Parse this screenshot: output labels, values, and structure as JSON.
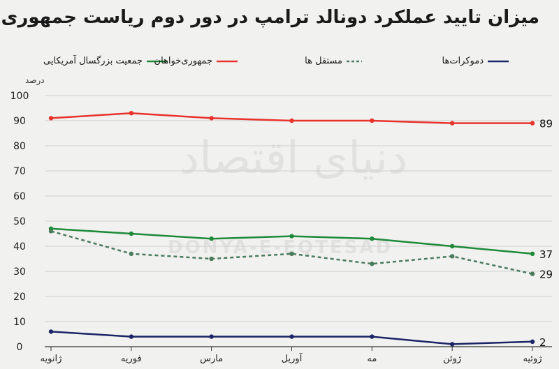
{
  "title": "میزان تایید عملکرد دونالد ترامپ در دور دوم ریاست جمهوری",
  "watermark": "دنیای اقتصاد",
  "watermark_en": "DONYA-E-EQTESAD",
  "chart_data": {
    "type": "line",
    "title": "میزان تایید عملکرد دونالد ترامپ در دور دوم ریاست جمهوری",
    "ylabel": "درصد",
    "xlabel": "",
    "ylim": [
      0,
      100
    ],
    "yticks": [
      0,
      10,
      20,
      30,
      40,
      50,
      60,
      70,
      80,
      90,
      100
    ],
    "categories": [
      "ژانویه",
      "فوریه",
      "مارس",
      "آوریل",
      "مه",
      "ژوئن",
      "ژوئیه"
    ],
    "grid": true,
    "legend_position": "top",
    "series": [
      {
        "name": "جمعیت بزرگسال آمریکایی",
        "color": "#1e8a3a",
        "dash": false,
        "values": [
          47,
          45,
          43,
          44,
          43,
          40,
          37
        ],
        "end_label": "37"
      },
      {
        "name": "جمهوری‌خواهان",
        "color": "#e8322b",
        "dash": false,
        "values": [
          91,
          93,
          91,
          90,
          90,
          89,
          89
        ],
        "end_label": "89"
      },
      {
        "name": "مستقل ها",
        "color": "#4a7a5c",
        "dash": true,
        "values": [
          46,
          37,
          35,
          37,
          33,
          36,
          29
        ],
        "end_label": "29"
      },
      {
        "name": "دموکرات‌ها",
        "color": "#1a2466",
        "dash": false,
        "values": [
          6,
          4,
          4,
          4,
          4,
          1,
          2
        ],
        "end_label": "2"
      }
    ]
  }
}
